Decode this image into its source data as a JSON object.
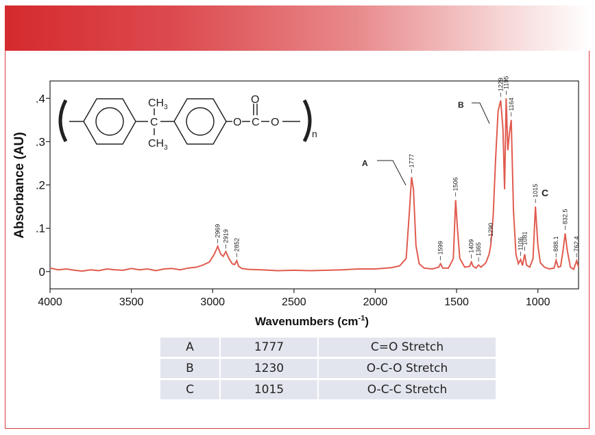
{
  "chart_data": {
    "type": "line",
    "xlabel": "Wavenumbers (cm",
    "xlabel_sup": "-1",
    "xlabel_end": ")",
    "ylabel": "Absorbance (AU)",
    "xlim": [
      4000,
      750
    ],
    "ylim": [
      -0.04,
      0.44
    ],
    "x_ticks": [
      {
        "value": 4000,
        "label": "4000"
      },
      {
        "value": 3500,
        "label": "3500"
      },
      {
        "value": 3000,
        "label": "3000"
      },
      {
        "value": 2500,
        "label": "2500"
      },
      {
        "value": 2000,
        "label": "2000"
      },
      {
        "value": 1500,
        "label": "1500"
      },
      {
        "value": 1000,
        "label": "1000"
      }
    ],
    "y_ticks": [
      {
        "value": 0,
        "label": "0"
      },
      {
        "value": 0.1,
        "label": ".1"
      },
      {
        "value": 0.2,
        "label": ".2"
      },
      {
        "value": 0.3,
        "label": ".3"
      },
      {
        "value": 0.4,
        "label": ".4"
      }
    ],
    "line_color": "#e05a4e",
    "series": [
      {
        "x": [
          4000,
          3950,
          3900,
          3850,
          3800,
          3750,
          3700,
          3650,
          3600,
          3550,
          3500,
          3450,
          3400,
          3350,
          3300,
          3250,
          3200,
          3150,
          3100,
          3060,
          3020,
          2990,
          2969,
          2950,
          2935,
          2919,
          2900,
          2880,
          2865,
          2852,
          2840,
          2820,
          2780,
          2700,
          2600,
          2500,
          2400,
          2300,
          2200,
          2100,
          2000,
          1900,
          1850,
          1810,
          1790,
          1777,
          1765,
          1750,
          1730,
          1700,
          1650,
          1610,
          1599,
          1585,
          1550,
          1520,
          1506,
          1495,
          1480,
          1450,
          1420,
          1409,
          1398,
          1380,
          1365,
          1350,
          1320,
          1300,
          1290,
          1275,
          1260,
          1245,
          1229,
          1215,
          1205,
          1195,
          1185,
          1175,
          1164,
          1150,
          1135,
          1120,
          1106,
          1095,
          1081,
          1070,
          1050,
          1030,
          1015,
          1000,
          985,
          960,
          930,
          900,
          888,
          875,
          860,
          845,
          832,
          820,
          800,
          780,
          762,
          750
        ],
        "y": [
          0.008,
          0.004,
          0.006,
          0.003,
          0.001,
          0.004,
          0.002,
          0.006,
          0.004,
          0.003,
          0.007,
          0.004,
          0.006,
          0.002,
          0.006,
          0.007,
          0.004,
          0.008,
          0.01,
          0.015,
          0.022,
          0.04,
          0.058,
          0.04,
          0.035,
          0.046,
          0.03,
          0.018,
          0.016,
          0.025,
          0.012,
          0.007,
          0.005,
          0.004,
          0.002,
          0.003,
          0.002,
          0.003,
          0.004,
          0.006,
          0.006,
          0.009,
          0.013,
          0.03,
          0.14,
          0.218,
          0.19,
          0.06,
          0.018,
          0.008,
          0.006,
          0.01,
          0.018,
          0.008,
          0.008,
          0.03,
          0.165,
          0.1,
          0.03,
          0.01,
          0.012,
          0.022,
          0.012,
          0.008,
          0.015,
          0.01,
          0.02,
          0.04,
          0.06,
          0.13,
          0.26,
          0.37,
          0.395,
          0.33,
          0.19,
          0.4,
          0.28,
          0.32,
          0.35,
          0.14,
          0.04,
          0.018,
          0.028,
          0.014,
          0.04,
          0.015,
          0.01,
          0.03,
          0.15,
          0.06,
          0.02,
          0.01,
          0.006,
          0.008,
          0.026,
          0.01,
          0.012,
          0.05,
          0.088,
          0.05,
          0.01,
          0.005,
          0.025,
          0.01
        ]
      }
    ],
    "peak_labels": [
      {
        "x": 2969,
        "y": 0.062,
        "label": "2969"
      },
      {
        "x": 2919,
        "y": 0.05,
        "label": "2919"
      },
      {
        "x": 2852,
        "y": 0.03,
        "label": "2852"
      },
      {
        "x": 1777,
        "y": 0.224,
        "label": "1777"
      },
      {
        "x": 1599,
        "y": 0.023,
        "label": "1599"
      },
      {
        "x": 1506,
        "y": 0.17,
        "label": "1506"
      },
      {
        "x": 1409,
        "y": 0.027,
        "label": "1409"
      },
      {
        "x": 1365,
        "y": 0.02,
        "label": "1365"
      },
      {
        "x": 1290,
        "y": 0.065,
        "label": "1290"
      },
      {
        "x": 1229,
        "y": 0.4,
        "label": "1229"
      },
      {
        "x": 1195,
        "y": 0.405,
        "label": "1195"
      },
      {
        "x": 1164,
        "y": 0.355,
        "label": "1164"
      },
      {
        "x": 1106,
        "y": 0.033,
        "label": "1106"
      },
      {
        "x": 1081,
        "y": 0.045,
        "label": "1081"
      },
      {
        "x": 1015,
        "y": 0.155,
        "label": "1015"
      },
      {
        "x": 888.1,
        "y": 0.03,
        "label": "888.1"
      },
      {
        "x": 832.5,
        "y": 0.093,
        "label": "832.5"
      },
      {
        "x": 762.4,
        "y": 0.03,
        "label": "762.4"
      }
    ],
    "annotations": [
      {
        "label": "A",
        "x": 1777
      },
      {
        "label": "B",
        "x": 1230
      },
      {
        "label": "C",
        "x": 1015
      }
    ],
    "structure": {
      "ch3_top": "CH",
      "ch3_bottom": "CH",
      "ch3_sub": "3",
      "carbon": "C",
      "oxygen": "O",
      "n_sub": "n"
    }
  },
  "table": {
    "rows": [
      [
        "A",
        "1777",
        "C=O Stretch"
      ],
      [
        "B",
        "1230",
        "O-C-O Stretch"
      ],
      [
        "C",
        "1015",
        "O-C-C Stretch"
      ]
    ]
  }
}
